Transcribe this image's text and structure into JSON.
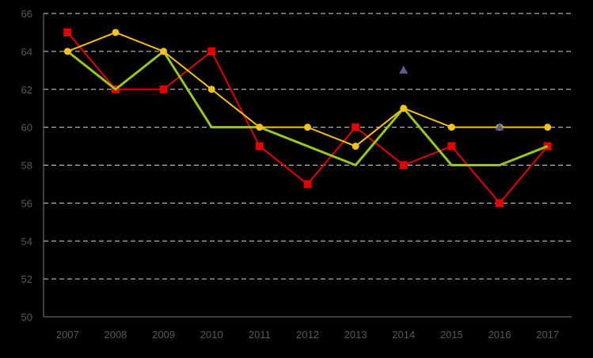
{
  "colors": {
    "background": "#000000",
    "grid": "#d9d9d9",
    "axis": "#7f7f7f",
    "tick_text": "#595959"
  },
  "chart_data": {
    "type": "line",
    "title": "",
    "xlabel": "",
    "ylabel": "",
    "categories": [
      "2007",
      "2008",
      "2009",
      "2010",
      "2011",
      "2012",
      "2013",
      "2014",
      "2015",
      "2016",
      "2017"
    ],
    "ylim": [
      50,
      66
    ],
    "yticks": [
      50,
      52,
      54,
      56,
      58,
      60,
      62,
      64,
      66
    ],
    "grid": "horizontal dashed",
    "legend": "none",
    "series": [
      {
        "color": "#e30000",
        "marker": "square",
        "line": true,
        "values": [
          65,
          62,
          62,
          64,
          59,
          57,
          60,
          58,
          59,
          56,
          59
        ]
      },
      {
        "color": "#9ac61d",
        "marker": "none",
        "line": true,
        "values": [
          64,
          62,
          64,
          60,
          60,
          null,
          58,
          61,
          58,
          58,
          59
        ]
      },
      {
        "color": "#f5c21b",
        "marker": "circle",
        "line": true,
        "values": [
          64,
          65,
          64,
          62,
          60,
          60,
          59,
          61,
          60,
          60,
          60
        ]
      },
      {
        "color": "#5b5e8e",
        "marker": "triangle",
        "line": false,
        "values": [
          null,
          null,
          null,
          null,
          null,
          null,
          null,
          63,
          null,
          60,
          null
        ]
      }
    ]
  }
}
